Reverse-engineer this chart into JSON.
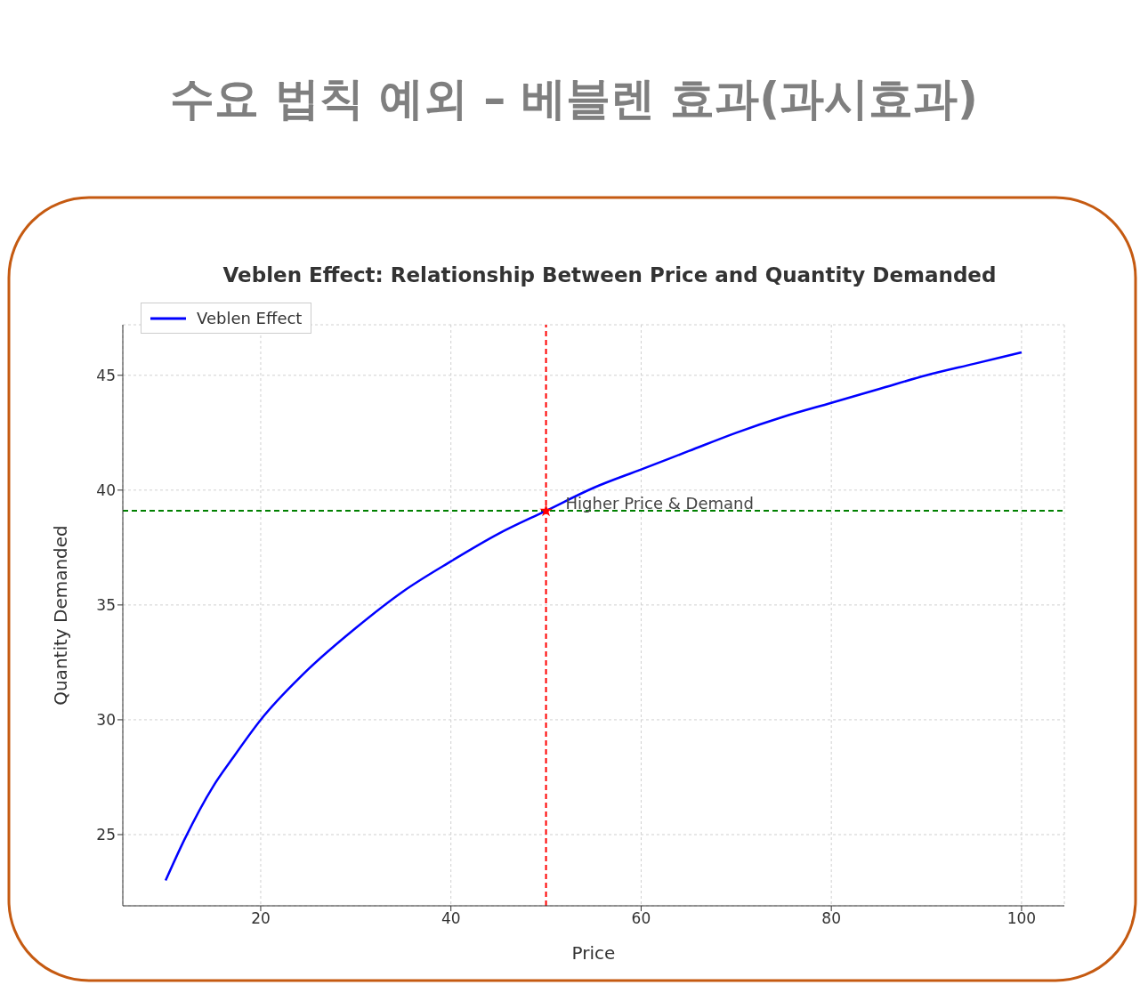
{
  "chart_data": {
    "type": "line",
    "title": "수요 법칙 예외 – 베블렌 효과(과시효과)",
    "subtitle": "Veblen Effect: Relationship Between Price and Quantity Demanded",
    "xlabel": "Price",
    "ylabel": "Quantity Demanded",
    "series": [
      {
        "name": "Veblen Effect",
        "color": "#0000ff",
        "marker": "none",
        "x": [
          10,
          12,
          15,
          17,
          20,
          25,
          30,
          35,
          40,
          45,
          50,
          55,
          60,
          65,
          70,
          75,
          80,
          85,
          90,
          95,
          100
        ],
        "values": [
          23.0,
          24.8,
          27.1,
          28.3,
          30.0,
          32.2,
          34.0,
          35.6,
          36.9,
          38.1,
          39.1,
          40.1,
          40.9,
          41.7,
          42.5,
          43.2,
          43.8,
          44.4,
          45.0,
          45.5,
          46.0
        ]
      },
      {
        "type": "scatter",
        "color": "#ff0000",
        "marker": "star",
        "x": [
          50
        ],
        "values": [
          39.1
        ]
      }
    ],
    "ref_lines": [
      {
        "axis": "x",
        "value": 50,
        "color": "#ff0000",
        "line_style": "dashed"
      },
      {
        "axis": "y",
        "value": 39.1,
        "color": "#008000",
        "line_style": "dashed"
      }
    ],
    "annotations": [
      {
        "text": "Higher Price & Demand",
        "x": 50,
        "y": 39.1
      }
    ],
    "xlim": [
      5.5,
      104.5
    ],
    "ylim": [
      21.9,
      47.2
    ],
    "xticks": [
      20,
      40,
      60,
      80,
      100
    ],
    "yticks": [
      25,
      30,
      35,
      40,
      45
    ],
    "grid": true,
    "legend": "top left"
  }
}
